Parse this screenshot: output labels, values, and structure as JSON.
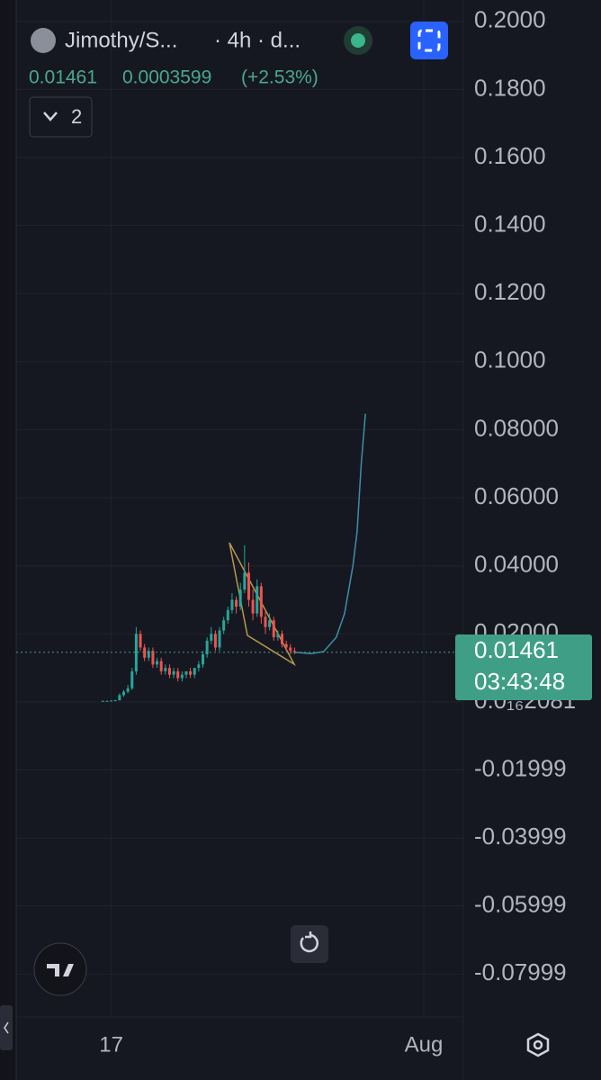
{
  "header": {
    "symbol": "Jimothy/S...",
    "interval": "· 4h · d...",
    "last": "0.01461",
    "change": "0.0003599",
    "change_pct": "(+2.53%)",
    "indicators": "2"
  },
  "price_label": {
    "price": "0.01461",
    "countdown": "03:43:48"
  },
  "chart_data": {
    "type": "candlestick",
    "x": [
      0,
      1,
      2,
      3,
      4,
      5,
      6,
      7,
      8,
      9,
      10,
      11,
      12,
      13,
      14,
      15,
      16,
      17,
      18,
      19,
      20,
      21,
      22,
      23,
      24,
      25,
      26,
      27,
      28,
      29,
      30,
      31,
      32,
      33,
      34,
      35,
      36,
      37,
      38,
      39,
      40,
      41,
      42,
      43,
      44,
      45,
      46
    ],
    "open": [
      0.0003,
      0.0003,
      0.0003,
      0.0004,
      0.0005,
      0.002,
      0.003,
      0.004,
      0.009,
      0.02,
      0.016,
      0.013,
      0.015,
      0.011,
      0.012,
      0.009,
      0.01,
      0.008,
      0.009,
      0.007,
      0.008,
      0.009,
      0.008,
      0.01,
      0.011,
      0.014,
      0.018,
      0.02,
      0.016,
      0.021,
      0.024,
      0.027,
      0.03,
      0.028,
      0.033,
      0.038,
      0.03,
      0.026,
      0.034,
      0.025,
      0.022,
      0.024,
      0.019,
      0.02,
      0.017,
      0.016,
      0.015
    ],
    "high": [
      0.0004,
      0.0004,
      0.0005,
      0.0006,
      0.0025,
      0.0035,
      0.005,
      0.01,
      0.022,
      0.021,
      0.017,
      0.016,
      0.016,
      0.013,
      0.013,
      0.011,
      0.011,
      0.01,
      0.01,
      0.009,
      0.009,
      0.01,
      0.01,
      0.012,
      0.015,
      0.019,
      0.022,
      0.021,
      0.022,
      0.025,
      0.028,
      0.032,
      0.031,
      0.035,
      0.046,
      0.041,
      0.033,
      0.036,
      0.035,
      0.027,
      0.026,
      0.025,
      0.021,
      0.021,
      0.018,
      0.017,
      0.016
    ],
    "low": [
      0.0002,
      0.0002,
      0.0002,
      0.0003,
      0.0004,
      0.0015,
      0.0025,
      0.0035,
      0.008,
      0.015,
      0.012,
      0.012,
      0.01,
      0.01,
      0.008,
      0.008,
      0.007,
      0.007,
      0.006,
      0.006,
      0.007,
      0.007,
      0.007,
      0.009,
      0.01,
      0.013,
      0.017,
      0.015,
      0.015,
      0.02,
      0.023,
      0.026,
      0.026,
      0.027,
      0.032,
      0.028,
      0.024,
      0.025,
      0.023,
      0.02,
      0.021,
      0.018,
      0.018,
      0.016,
      0.015,
      0.014,
      0.014
    ],
    "close": [
      0.0003,
      0.0003,
      0.0004,
      0.0005,
      0.002,
      0.003,
      0.004,
      0.009,
      0.02,
      0.016,
      0.013,
      0.015,
      0.011,
      0.012,
      0.009,
      0.01,
      0.008,
      0.009,
      0.007,
      0.008,
      0.009,
      0.008,
      0.01,
      0.011,
      0.014,
      0.018,
      0.02,
      0.016,
      0.021,
      0.024,
      0.027,
      0.03,
      0.028,
      0.033,
      0.038,
      0.03,
      0.026,
      0.034,
      0.025,
      0.022,
      0.024,
      0.019,
      0.02,
      0.017,
      0.016,
      0.015,
      0.01461
    ],
    "up_color": "#26a69a",
    "down_color": "#ef5350",
    "projection": {
      "color": "#3d8fa6",
      "x": [
        46,
        50,
        53,
        56,
        58,
        60,
        61,
        62,
        63
      ],
      "values": [
        0.0146,
        0.0142,
        0.0148,
        0.019,
        0.026,
        0.04,
        0.05,
        0.07,
        0.0847
      ]
    },
    "last_price": 0.01461,
    "xlim": [
      -20.8,
      86.5
    ],
    "ylim": [
      -0.0926,
      0.2063
    ],
    "xticks": [
      {
        "value": 2,
        "label": "17"
      },
      {
        "value": 77,
        "label": "Aug"
      }
    ],
    "yticks": [
      {
        "value": 0.2,
        "label": "0.2000"
      },
      {
        "value": 0.18,
        "label": "0.1800"
      },
      {
        "value": 0.16,
        "label": "0.1600"
      },
      {
        "value": 0.14,
        "label": "0.1400"
      },
      {
        "value": 0.12,
        "label": "0.1200"
      },
      {
        "value": 0.1,
        "label": "0.1000"
      },
      {
        "value": 0.08,
        "label": "0.08000"
      },
      {
        "value": 0.06,
        "label": "0.06000"
      },
      {
        "value": 0.04,
        "label": "0.04000"
      },
      {
        "value": 0.02,
        "label": "0.02000"
      },
      {
        "value": 2.081e-17,
        "label": "0.0₁₆2081"
      },
      -0.01999,
      -0.03999,
      -0.05999,
      -0.07999
    ],
    "grid": true
  }
}
